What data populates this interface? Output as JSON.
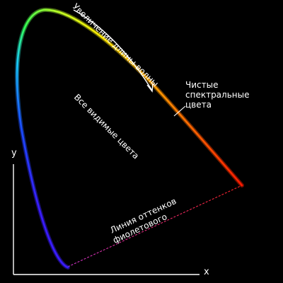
{
  "title": "",
  "labels": {
    "wavelength_increase": "Увеличение длины волны",
    "pure_spectral_line1": "Чистые",
    "pure_spectral_line2": "спектральные",
    "pure_spectral_line3": "цвета",
    "all_visible": "Все видимые цвета",
    "purple_line1": "Линия оттенков",
    "purple_line2": "фиолетового"
  },
  "axes": {
    "x_label": "x",
    "y_label": "y"
  },
  "colors": {
    "background": "#000000",
    "text": "#ffffff",
    "axis": "#ffffff",
    "spectrum_violet": "#3a1cff",
    "spectrum_blue": "#1a4dff",
    "spectrum_cyan": "#18c8ff",
    "spectrum_green": "#33ff55",
    "spectrum_yellowgreen": "#c8ff22",
    "spectrum_yellow": "#ffe800",
    "spectrum_orange": "#ff9a00",
    "spectrum_red": "#ff1a00",
    "purple_line_start": "#cc33cc",
    "purple_line_end": "#ff2222"
  }
}
